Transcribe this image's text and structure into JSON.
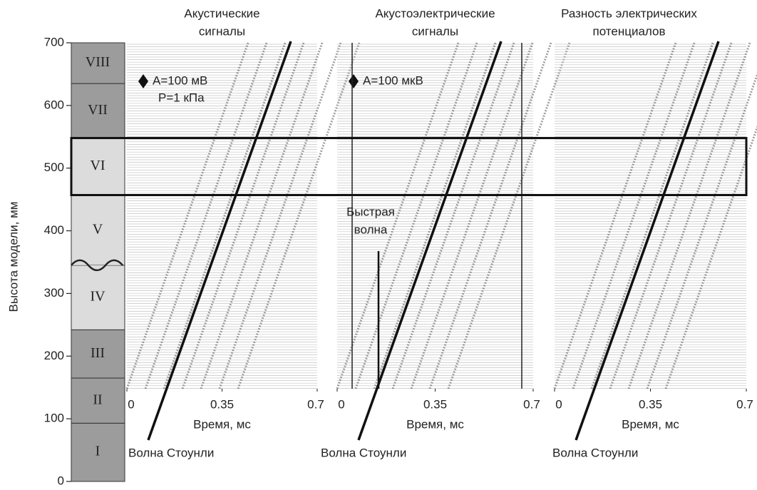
{
  "y_axis": {
    "label": "Высота модели, мм",
    "ylim": [
      0,
      700
    ],
    "yticks": [
      0,
      100,
      200,
      300,
      400,
      500,
      600,
      700
    ]
  },
  "layers": [
    {
      "label": "I",
      "bottom": 0,
      "top": 93,
      "color": "#9c9c9c"
    },
    {
      "label": "II",
      "bottom": 93,
      "top": 165,
      "color": "#9c9c9c"
    },
    {
      "label": "III",
      "bottom": 165,
      "top": 242,
      "color": "#9c9c9c"
    },
    {
      "label": "IV",
      "bottom": 242,
      "top": 345,
      "color": "#dcdcdc"
    },
    {
      "label": "V",
      "bottom": 345,
      "top": 457,
      "color": "#dcdcdc"
    },
    {
      "label": "VI",
      "bottom": 457,
      "top": 548,
      "color": "#dcdcdc"
    },
    {
      "label": "VII",
      "bottom": 548,
      "top": 635,
      "color": "#9c9c9c"
    },
    {
      "label": "VIII",
      "bottom": 635,
      "top": 700,
      "color": "#9c9c9c"
    }
  ],
  "panels": [
    {
      "title": [
        "Акустические",
        "сигналы"
      ],
      "xlim": [
        0,
        0.7
      ],
      "xticks": [
        0,
        0.35,
        0.7
      ],
      "xlabel": "Время, мс",
      "wave_label": "Волна Стоунли",
      "notes": [
        "A=100 мВ",
        "P=1 кПа"
      ]
    },
    {
      "title": [
        "Акустоэлектрические",
        "сигналы"
      ],
      "xlim": [
        0,
        0.7
      ],
      "xticks": [
        0,
        0.35,
        0.7
      ],
      "xlabel": "Время, мс",
      "wave_label": "Волна Стоунли",
      "notes": [
        "A=100 мкВ"
      ],
      "fast_wave": [
        "Быстрая",
        "волна"
      ]
    },
    {
      "title": [
        "Разность электрических",
        "потенциалов"
      ],
      "xlim": [
        0,
        0.7
      ],
      "xticks": [
        0,
        0.35,
        0.7
      ],
      "xlabel": "Время, мс",
      "wave_label": "Волна Стоунли",
      "notes": []
    }
  ]
}
